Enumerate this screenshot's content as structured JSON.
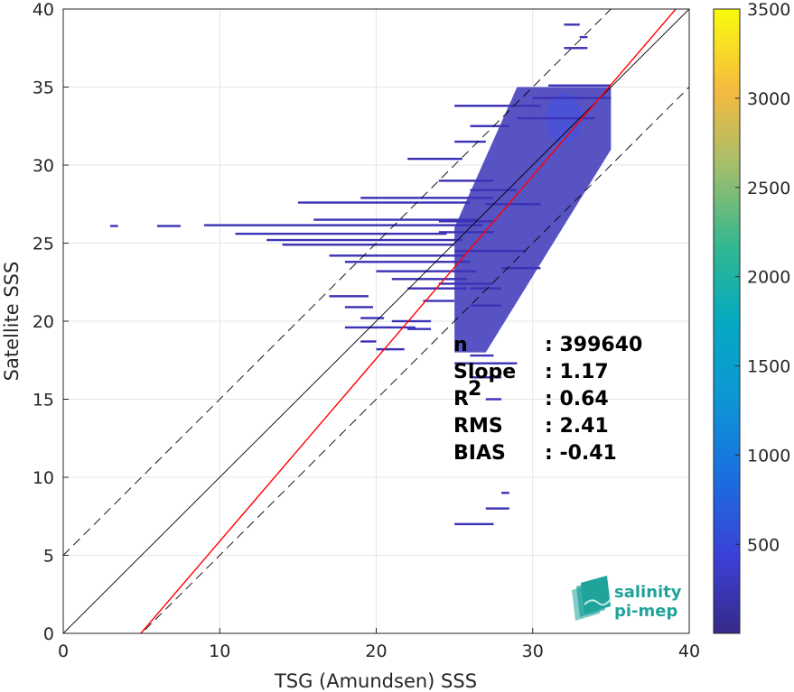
{
  "chart_data": {
    "type": "heatmap",
    "xlabel": "TSG (Amundsen) SSS",
    "ylabel": "Satellite SSS",
    "xlim": [
      0,
      40
    ],
    "ylim": [
      0,
      40
    ],
    "xticks": [
      "0",
      "10",
      "20",
      "30",
      "40"
    ],
    "yticks": [
      "0",
      "5",
      "10",
      "15",
      "20",
      "25",
      "30",
      "35",
      "40"
    ],
    "grid": true,
    "colorbar": {
      "range": [
        1,
        3500
      ],
      "ticks": [
        "500",
        "1000",
        "1500",
        "2000",
        "2500",
        "3000",
        "3500"
      ],
      "colormap": "parula"
    },
    "reference_lines": {
      "identity": {
        "slope": 1,
        "intercept": 0,
        "color": "#000000",
        "style": "solid"
      },
      "upper_bound": {
        "slope": 1,
        "intercept": 5,
        "color": "#000000",
        "style": "dashed"
      },
      "lower_bound": {
        "slope": 1,
        "intercept": -5,
        "color": "#000000",
        "style": "dashed"
      },
      "regression": {
        "slope": 1.17,
        "intercept": -5.8,
        "color": "#ff0000",
        "style": "solid"
      }
    },
    "stats": [
      {
        "label": "n",
        "value": ": 399640"
      },
      {
        "label": "Slope",
        "value": ": 1.17"
      },
      {
        "label": "R",
        "superscript": "2",
        "value": ": 0.64"
      },
      {
        "label": "RMS",
        "value": ": 2.41"
      },
      {
        "label": "BIAS",
        "value": ": -0.41"
      }
    ],
    "density_core": {
      "x_range": [
        25,
        35
      ],
      "y_range": [
        18,
        35
      ],
      "peak_near": [
        32,
        33
      ]
    },
    "density_segments": [
      [
        3,
        26.1,
        3.5
      ],
      [
        6,
        26.1,
        7.5
      ],
      [
        9,
        26.15,
        26.8
      ],
      [
        11,
        25.6,
        24.5
      ],
      [
        13,
        25.2,
        25.5
      ],
      [
        14,
        24.9,
        25.0
      ],
      [
        15,
        27.6,
        26.0
      ],
      [
        16,
        26.5,
        26.5
      ],
      [
        17,
        24.2,
        25.7
      ],
      [
        18,
        23.8,
        26.0
      ],
      [
        19,
        27.9,
        27.5
      ],
      [
        20,
        23.2,
        26.4
      ],
      [
        21,
        22.7,
        25.8
      ],
      [
        22,
        22.1,
        25.8
      ],
      [
        17,
        21.6,
        19.5
      ],
      [
        18,
        20.9,
        19.8
      ],
      [
        19,
        20.2,
        20.5
      ],
      [
        18,
        19.6,
        22.5
      ],
      [
        19,
        18.7,
        20.0
      ],
      [
        20,
        18.2,
        21.8
      ],
      [
        21,
        20.0,
        23.5
      ],
      [
        22,
        19.5,
        23.5
      ],
      [
        23,
        21.3,
        25.0
      ],
      [
        24,
        22.4,
        27.5
      ],
      [
        22,
        30.4,
        25.5
      ],
      [
        25,
        31.5,
        27.0
      ],
      [
        26,
        32.5,
        28.5
      ],
      [
        24,
        29.0,
        27.5
      ],
      [
        26,
        28.4,
        29.0
      ],
      [
        27,
        27.5,
        30.5
      ],
      [
        24,
        26.4,
        27.5
      ],
      [
        24,
        25.7,
        27.5
      ],
      [
        25,
        24.5,
        29.5
      ],
      [
        28,
        23.4,
        30.5
      ],
      [
        26,
        22.1,
        28.0
      ],
      [
        26,
        21.0,
        28.0
      ],
      [
        25,
        17.3,
        29.0
      ],
      [
        26,
        16.4,
        28.0
      ],
      [
        27,
        15.0,
        28.0
      ],
      [
        26,
        17.8,
        27.5
      ],
      [
        29,
        33.0,
        34.0
      ],
      [
        30,
        34.3,
        35.0
      ],
      [
        31,
        35.1,
        35.0
      ],
      [
        25,
        33.8,
        30.5
      ],
      [
        32,
        39.0,
        33.0
      ],
      [
        32,
        37.5,
        33.5
      ],
      [
        33,
        38.2,
        33.5
      ],
      [
        27,
        8.0,
        28.5
      ],
      [
        25,
        7.0,
        27.5
      ],
      [
        28,
        9.0,
        28.5
      ]
    ],
    "logo_text": [
      "salinity",
      "pi-mep"
    ]
  }
}
